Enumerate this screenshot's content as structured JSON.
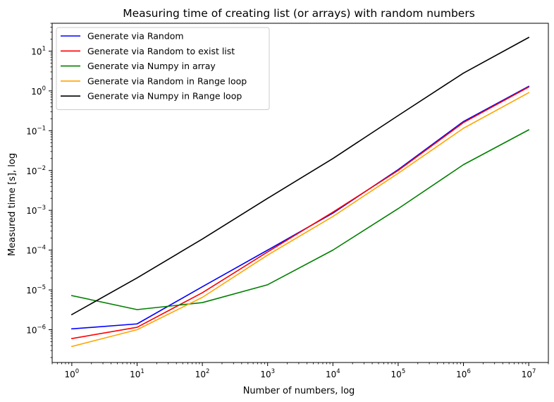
{
  "chart_data": {
    "type": "line",
    "title": "Measuring time of creating list (or arrays) with random numbers",
    "xlabel": "Number of numbers, log",
    "ylabel": "Measured time [s], log",
    "xscale": "log",
    "yscale": "log",
    "xlim": [
      0.5,
      20000000
    ],
    "ylim": [
      1.5e-07,
      50
    ],
    "grid": false,
    "legend_position": "top-left",
    "x": [
      1,
      10,
      100,
      1000,
      10000,
      100000,
      1000000,
      10000000
    ],
    "x_ticks": [
      {
        "value": 1,
        "base": "10",
        "exp": "0"
      },
      {
        "value": 10,
        "base": "10",
        "exp": "1"
      },
      {
        "value": 100,
        "base": "10",
        "exp": "2"
      },
      {
        "value": 1000,
        "base": "10",
        "exp": "3"
      },
      {
        "value": 10000,
        "base": "10",
        "exp": "4"
      },
      {
        "value": 100000,
        "base": "10",
        "exp": "5"
      },
      {
        "value": 1000000,
        "base": "10",
        "exp": "6"
      },
      {
        "value": 10000000,
        "base": "10",
        "exp": "7"
      }
    ],
    "y_ticks": [
      {
        "value": 1e-06,
        "base": "10",
        "exp": "−6"
      },
      {
        "value": 1e-05,
        "base": "10",
        "exp": "−5"
      },
      {
        "value": 0.0001,
        "base": "10",
        "exp": "−4"
      },
      {
        "value": 0.001,
        "base": "10",
        "exp": "−3"
      },
      {
        "value": 0.01,
        "base": "10",
        "exp": "−2"
      },
      {
        "value": 0.1,
        "base": "10",
        "exp": "−1"
      },
      {
        "value": 1,
        "base": "10",
        "exp": "0"
      },
      {
        "value": 10,
        "base": "10",
        "exp": "1"
      }
    ],
    "series": [
      {
        "name": "Generate via Random",
        "color": "#0000ff",
        "values": [
          1.05e-06,
          1.4e-06,
          1.2e-05,
          0.0001,
          0.00085,
          0.0105,
          0.17,
          1.3
        ]
      },
      {
        "name": "Generate via Random to exist list",
        "color": "#ff0000",
        "values": [
          6e-07,
          1.15e-06,
          8.5e-06,
          9e-05,
          0.0009,
          0.01,
          0.16,
          1.25
        ]
      },
      {
        "name": "Generate via Numpy in array",
        "color": "#008000",
        "values": [
          7.2e-06,
          3.2e-06,
          4.8e-06,
          1.35e-05,
          0.0001,
          0.0011,
          0.014,
          0.105
        ]
      },
      {
        "name": "Generate via Random in Range loop",
        "color": "#ffa500",
        "values": [
          3.8e-07,
          1e-06,
          6.5e-06,
          7.5e-05,
          0.0007,
          0.0085,
          0.115,
          0.9
        ]
      },
      {
        "name": "Generate via Numpy in Range loop",
        "color": "#000000",
        "values": [
          2.4e-06,
          2e-05,
          0.00019,
          0.002,
          0.02,
          0.24,
          2.8,
          22
        ]
      }
    ]
  }
}
